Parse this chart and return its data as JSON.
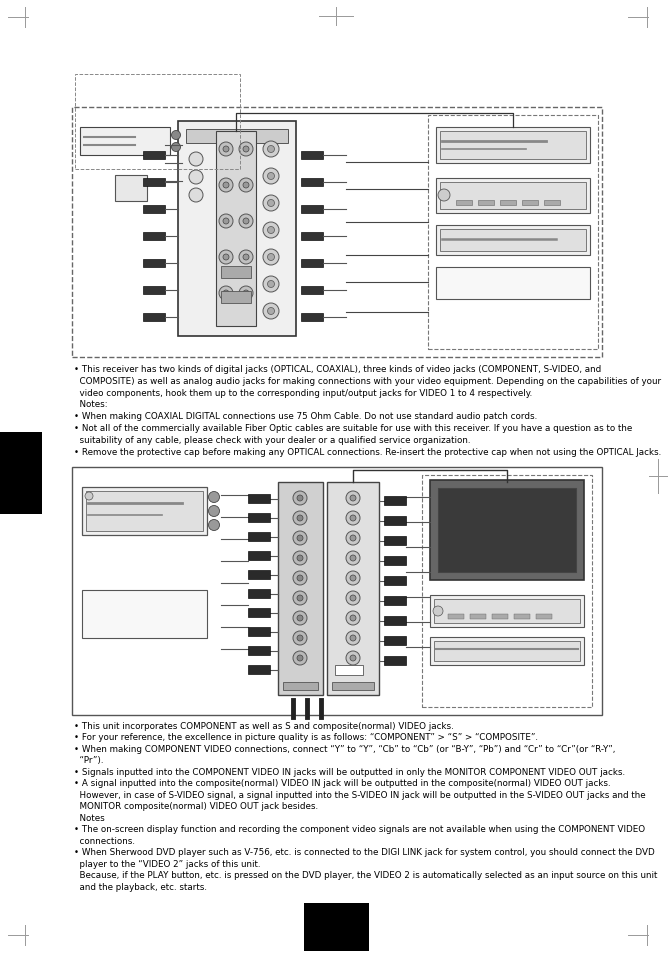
{
  "page_bg": "#ffffff",
  "text_color": "#000000",
  "diagram1_text_lines": [
    "• This receiver has two kinds of digital jacks (OPTICAL, COAXIAL), three kinds of video jacks (COMPONENT, S-VIDEO, and",
    "  COMPOSITE) as well as analog audio jacks for making connections with your video equipment. Depending on the capabilities of your",
    "  video components, hook them up to the corresponding input/output jacks for VIDEO 1 to 4 respectively.",
    "  Notes:",
    "• When making COAXIAL DIGITAL connections use 75 Ohm Cable. Do not use standard audio patch cords.",
    "• Not all of the commercially available Fiber Optic cables are suitable for use with this receiver. If you have a question as to the",
    "  suitability of any cable, please check with your dealer or a qualified service organization.",
    "• Remove the protective cap before making any OPTICAL connections. Re-insert the protective cap when not using the OPTICAL Jacks."
  ],
  "diagram2_text_lines": [
    "• This unit incorporates COMPONENT as well as S and composite(normal) VIDEO jacks.",
    "• For your reference, the excellence in picture quality is as follows: “COMPONENT” > “S” > “COMPOSITE”.",
    "• When making COMPONENT VIDEO connections, connect “Y” to “Y”, “Cb” to “Cb” (or “B-Y”, “Pb”) and “Cr” to “Cr”(or “R-Y”,",
    "  “Pr”).",
    "• Signals inputted into the COMPONENT VIDEO IN jacks will be outputted in only the MONITOR COMPONENT VIDEO OUT jacks.",
    "• A signal inputted into the composite(normal) VIDEO IN jack will be outputted in the composite(normal) VIDEO OUT jacks.",
    "  However, in case of S-VIDEO signal, a signal inputted into the S-VIDEO IN jack will be outputted in the S-VIDEO OUT jacks and the",
    "  MONITOR composite(normal) VIDEO OUT jack besides.",
    "  Notes",
    "• The on-screen display function and recording the component video signals are not available when using the COMPONENT VIDEO",
    "  connections.",
    "• When Sherwood DVD player such as V-756, etc. is connected to the DIGI LINK jack for system control, you should connect the DVD",
    "  player to the “VIDEO 2” jacks of this unit.",
    "  Because, if the PLAY button, etc. is pressed on the DVD player, the VIDEO 2 is automatically selected as an input source on this unit",
    "  and the playback, etc. starts."
  ]
}
